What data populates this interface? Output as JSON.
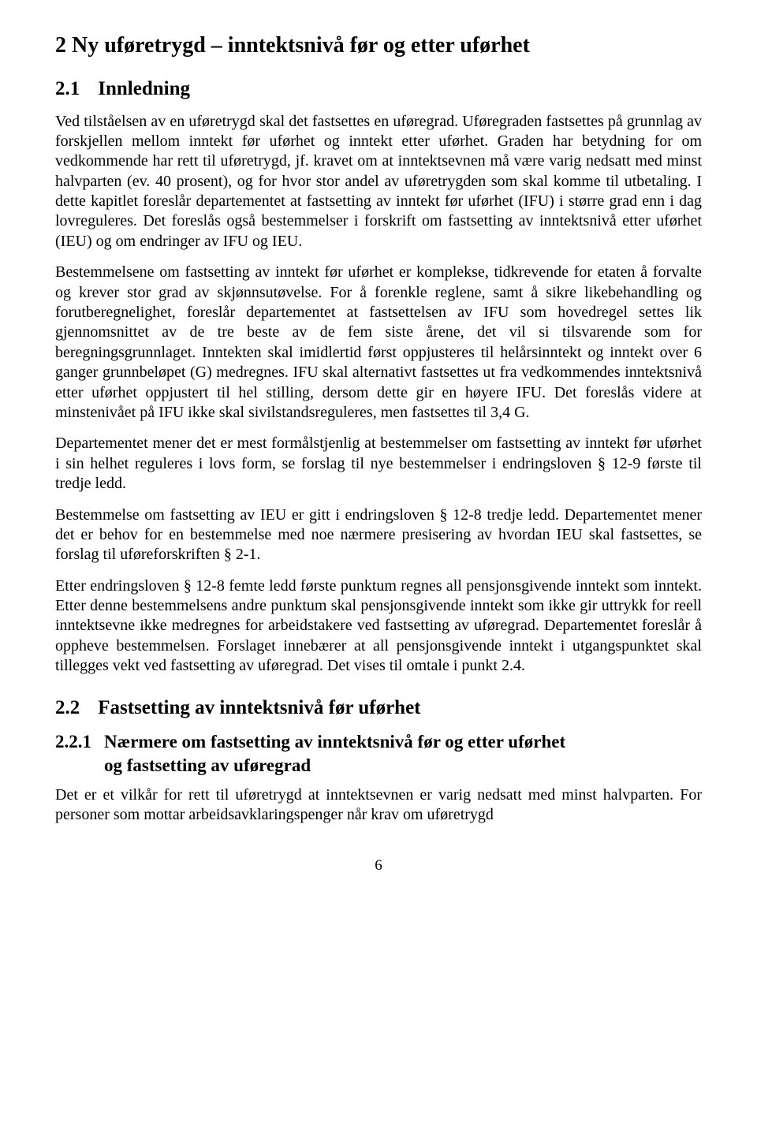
{
  "headings": {
    "h1": "2   Ny uføretrygd – inntektsnivå før og etter uførhet",
    "h2_1_num": "2.1",
    "h2_1_text": "Innledning",
    "h2_2_num": "2.2",
    "h2_2_text": "Fastsetting av inntektsnivå før uførhet",
    "h3_1_num": "2.2.1",
    "h3_1_text": "Nærmere om fastsetting av inntektsnivå før og etter uførhet",
    "h3_1_cont": "og fastsetting av uføregrad"
  },
  "paragraphs": {
    "p1": "Ved tilståelsen av en uføretrygd skal det fastsettes en uføregrad. Uføregraden fastsettes på grunnlag av forskjellen mellom inntekt før uførhet og inntekt etter uførhet. Graden har betydning for om vedkommende har rett til uføretrygd, jf. kravet om at inntektsevnen må være varig nedsatt med minst halvparten (ev. 40 prosent), og for hvor stor andel av uføretrygden som skal komme til utbetaling. I dette kapitlet foreslår departementet at fastsetting av inntekt før uførhet (IFU) i større grad enn i dag lovreguleres. Det foreslås også bestemmelser i forskrift om fastsetting av inntektsnivå etter uførhet (IEU) og om endringer av IFU og IEU.",
    "p2": "Bestemmelsene om fastsetting av inntekt før uførhet er komplekse, tidkrevende for etaten å forvalte og krever stor grad av skjønnsutøvelse. For å forenkle reglene, samt å sikre likebehandling og forutberegnelighet, foreslår departementet at fastsettelsen av IFU som hovedregel settes lik gjennomsnittet av de tre beste av de fem siste årene, det vil si tilsvarende som for beregningsgrunnlaget. Inntekten skal imidlertid først oppjusteres til helårsinntekt og inntekt over 6 ganger grunnbeløpet (G) medregnes. IFU skal alternativt fastsettes ut fra vedkommendes inntektsnivå etter uførhet oppjustert til hel stilling, dersom dette gir en høyere IFU. Det foreslås videre at minstenivået på IFU ikke skal sivilstandsreguleres, men fastsettes til 3,4 G.",
    "p3": "Departementet mener det er mest formålstjenlig at bestemmelser om fastsetting av inntekt før uførhet i sin helhet reguleres i lovs form, se forslag til nye bestemmelser i endringsloven § 12-9 første til tredje ledd.",
    "p4": "Bestemmelse om fastsetting av IEU er gitt i endringsloven § 12-8 tredje ledd. Departementet mener det er behov for en bestemmelse med noe nærmere presisering av hvordan IEU skal fastsettes, se forslag til uføreforskriften § 2-1.",
    "p5": "Etter endringsloven § 12-8 femte ledd første punktum regnes all pensjonsgivende inntekt som inntekt. Etter denne bestemmelsens andre punktum skal pensjonsgivende inntekt som ikke gir uttrykk for reell inntektsevne ikke medregnes for arbeidstakere ved fastsetting av uføregrad. Departementet foreslår å oppheve bestemmelsen. Forslaget innebærer at all pensjonsgivende inntekt i utgangspunktet skal tillegges vekt ved fastsetting av uføregrad. Det vises til omtale i punkt 2.4.",
    "p6": "Det er et vilkår for rett til uføretrygd at inntektsevnen er varig nedsatt med minst halvparten. For personer som mottar arbeidsavklaringspenger når krav om uføretrygd"
  },
  "page_number": "6"
}
